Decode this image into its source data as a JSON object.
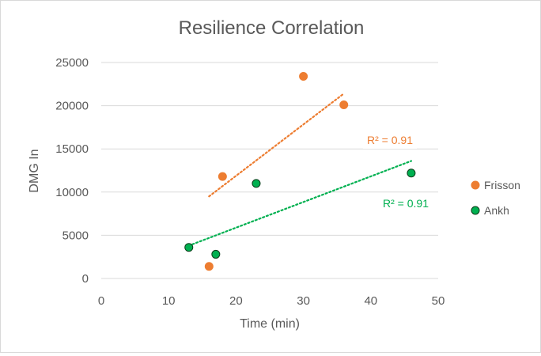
{
  "chart_data": {
    "type": "scatter",
    "title": "Resilience Correlation",
    "xlabel": "Time (min)",
    "ylabel": "DMG In",
    "xlim": [
      0,
      50
    ],
    "ylim": [
      0,
      25000
    ],
    "x_ticks": [
      "0",
      "10",
      "20",
      "30",
      "40",
      "50"
    ],
    "y_ticks": [
      "0",
      "5000",
      "10000",
      "15000",
      "20000",
      "25000"
    ],
    "grid": "horizontal",
    "legend_position": "right",
    "series": [
      {
        "name": "Frisson",
        "color": "#ed7d31",
        "points": [
          [
            16,
            1400
          ],
          [
            18,
            11800
          ],
          [
            30,
            23400
          ],
          [
            36,
            20100
          ]
        ],
        "trendline": {
          "x_range": [
            16,
            36
          ],
          "y_start": 9500,
          "y_end": 21400,
          "label": "R² = 0.91"
        }
      },
      {
        "name": "Ankh",
        "color": "#00b050",
        "points": [
          [
            13,
            3600
          ],
          [
            17,
            2800
          ],
          [
            23,
            11000
          ],
          [
            46,
            12200
          ]
        ],
        "trendline": {
          "x_range": [
            13,
            46
          ],
          "y_start": 3800,
          "y_end": 13600,
          "label": "R² = 0.91"
        }
      }
    ]
  }
}
